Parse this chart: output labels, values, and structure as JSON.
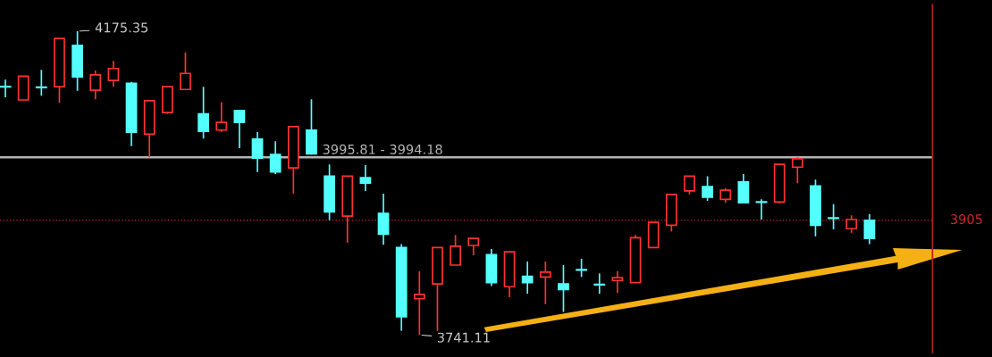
{
  "chart_data": {
    "type": "candlestick",
    "categories": [
      null,
      null,
      null,
      null,
      null,
      null,
      null,
      null,
      null,
      null,
      null,
      null,
      null,
      null,
      null,
      null,
      null,
      null,
      null,
      null,
      null,
      null,
      null,
      null,
      null,
      null,
      null,
      null,
      null,
      null,
      null,
      null,
      null,
      null,
      null,
      null,
      null,
      null,
      null,
      null,
      null,
      null,
      null,
      null,
      null,
      null,
      null,
      null,
      null
    ],
    "ohlc": [
      [
        4096,
        4106,
        4081,
        4096
      ],
      [
        4077,
        4111,
        4077,
        4111
      ],
      [
        4095,
        4120,
        4083,
        4095
      ],
      [
        4096,
        4165,
        4073,
        4165
      ],
      [
        4155,
        4175.35,
        4090,
        4110
      ],
      [
        4091,
        4119,
        4078,
        4113
      ],
      [
        4105,
        4133,
        4096,
        4122
      ],
      [
        4101,
        4103,
        4011,
        4031
      ],
      [
        4028,
        4076,
        3995,
        4076
      ],
      [
        4059,
        4096,
        4057,
        4096
      ],
      [
        4092,
        4145,
        4092,
        4115
      ],
      [
        4057,
        4096,
        4022,
        4032
      ],
      [
        4034,
        4074,
        4031,
        4045
      ],
      [
        4062,
        4063,
        4008,
        4045
      ],
      [
        4021,
        4031,
        3974,
        3994
      ],
      [
        3999,
        4018,
        3971,
        3974
      ],
      [
        3980,
        4039,
        3943,
        4039
      ],
      [
        4034,
        4078,
        3999,
        4000
      ],
      [
        3968,
        3985,
        3905,
        3917
      ],
      [
        3911,
        3968,
        3873,
        3968
      ],
      [
        3966,
        3984,
        3947,
        3958
      ],
      [
        3915,
        3943,
        3870,
        3885
      ],
      [
        3866,
        3871,
        3747,
        3767
      ],
      [
        3793,
        3832,
        3741.11,
        3799
      ],
      [
        3814,
        3866,
        3747,
        3866
      ],
      [
        3841,
        3884,
        3841,
        3868
      ],
      [
        3869,
        3879,
        3855,
        3879
      ],
      [
        3856,
        3864,
        3811,
        3816
      ],
      [
        3810,
        3860,
        3795,
        3860
      ],
      [
        3825,
        3846,
        3800,
        3816
      ],
      [
        3824,
        3846,
        3785,
        3831
      ],
      [
        3814,
        3841,
        3774,
        3806
      ],
      [
        3834,
        3850,
        3824,
        3834
      ],
      [
        3813,
        3829,
        3800,
        3813
      ],
      [
        3819,
        3832,
        3801,
        3823
      ],
      [
        3816,
        3884,
        3816,
        3880
      ],
      [
        3866,
        3902,
        3866,
        3902
      ],
      [
        3898,
        3942,
        3889,
        3942
      ],
      [
        3947,
        3968,
        3942,
        3968
      ],
      [
        3953,
        3968,
        3933,
        3938
      ],
      [
        3935,
        3951,
        3930,
        3948
      ],
      [
        3960,
        3971,
        3929,
        3930
      ],
      [
        3931,
        3935,
        3906,
        3931
      ],
      [
        3931,
        3985,
        3929,
        3985
      ],
      [
        3981,
        3995,
        3958,
        3993
      ],
      [
        3954,
        3963,
        3882,
        3898
      ],
      [
        3908,
        3928,
        3892,
        3908
      ],
      [
        3893,
        3912,
        3887,
        3906
      ],
      [
        3905,
        3914,
        3871,
        3879
      ]
    ],
    "colors": [
      "#54ffff",
      "#ff3232",
      "#54ffff",
      "#ff3232",
      "#54ffff",
      "#ff3232",
      "#ff3232",
      "#54ffff",
      "#ff3232",
      "#ff3232",
      "#ff3232",
      "#54ffff",
      "#ff3232",
      "#54ffff",
      "#54ffff",
      "#54ffff",
      "#ff3232",
      "#54ffff",
      "#54ffff",
      "#ff3232",
      "#54ffff",
      "#54ffff",
      "#54ffff",
      "#ff3232",
      "#ff3232",
      "#ff3232",
      "#ff3232",
      "#54ffff",
      "#ff3232",
      "#54ffff",
      "#ff3232",
      "#54ffff",
      "#54ffff",
      "#54ffff",
      "#ff3232",
      "#ff3232",
      "#ff3232",
      "#ff3232",
      "#ff3232",
      "#54ffff",
      "#ff3232",
      "#54ffff",
      "#54ffff",
      "#ff3232",
      "#ff3232",
      "#54ffff",
      "#54ffff",
      "#ff3232",
      "#54ffff"
    ],
    "grid": false,
    "bands": [
      {
        "axis": "y",
        "from": 3994.18,
        "to": 3995.81,
        "label": "3995.81 - 3994.18",
        "color": "#b4b4b4"
      }
    ],
    "ref_lines": [
      {
        "axis": "y",
        "value": 3905,
        "label": "3905",
        "color": "#c82828",
        "line_style": "dotted"
      }
    ],
    "annotations": [
      "4175.35",
      "3741.11"
    ]
  }
}
